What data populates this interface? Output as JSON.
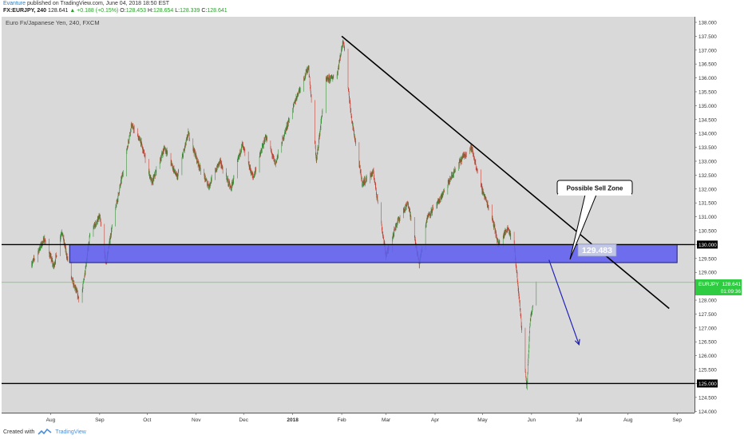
{
  "header": {
    "author": "Evanture",
    "published_text": " published on TradingView.com, June 04, 2018 18:50 EST",
    "symbol": "FX:EURJPY, 240",
    "last": "128.641",
    "change": "▲ +0.188 (+0.15%)",
    "o_label": "O:",
    "o_value": "128.453",
    "h_label": "H:",
    "h_value": "128.654",
    "l_label": "L:",
    "l_value": "128.339",
    "c_label": "C:",
    "c_value": "128.641"
  },
  "footer": {
    "created_with": "Created with",
    "brand": "TradingView"
  },
  "colors": {
    "plot_bg": "#d9d9d9",
    "up_candle": "#2e8b2e",
    "down_candle": "#c0392b",
    "zone_fill": "#5d5df0",
    "zone_border": "#1c1c6e",
    "trendline": "#000000",
    "arrow": "#2222bb",
    "current_price_line": "#5fd35f"
  },
  "chart_data": {
    "type": "candlestick",
    "title": "Euro Fx/Japanese Yen, 240, FXCM",
    "symbol_tag": "EURJPY",
    "current_price": "128.641",
    "countdown": "01:09:36",
    "x_ticks": [
      "Aug",
      "Sep",
      "Oct",
      "Nov",
      "Dec",
      "2018",
      "Feb",
      "Mar",
      "Apr",
      "May",
      "Jun",
      "Jul",
      "Aug",
      "Sep"
    ],
    "y_ticks": [
      "138.000",
      "137.500",
      "137.000",
      "136.500",
      "136.000",
      "135.500",
      "135.000",
      "134.500",
      "134.000",
      "133.500",
      "133.000",
      "132.500",
      "132.000",
      "131.500",
      "131.000",
      "130.500",
      "130.000",
      "129.500",
      "129.000",
      "128.500",
      "128.000",
      "127.500",
      "127.000",
      "126.500",
      "126.000",
      "125.500",
      "125.000",
      "124.500",
      "124.000"
    ],
    "ylim": [
      123.95,
      138.2
    ],
    "price_path": [
      [
        "2017-07-20",
        129.3
      ],
      [
        "2017-07-28",
        130.2
      ],
      [
        "2017-08-03",
        129.2
      ],
      [
        "2017-08-08",
        130.5
      ],
      [
        "2017-08-14",
        128.8
      ],
      [
        "2017-08-20",
        127.9
      ],
      [
        "2017-08-26",
        130.4
      ],
      [
        "2017-09-01",
        131.0
      ],
      [
        "2017-09-05",
        129.3
      ],
      [
        "2017-09-09",
        130.7
      ],
      [
        "2017-09-16",
        132.7
      ],
      [
        "2017-09-21",
        134.3
      ],
      [
        "2017-09-27",
        133.7
      ],
      [
        "2017-10-04",
        132.2
      ],
      [
        "2017-10-12",
        133.5
      ],
      [
        "2017-10-20",
        132.4
      ],
      [
        "2017-10-27",
        134.0
      ],
      [
        "2017-11-03",
        132.8
      ],
      [
        "2017-11-09",
        132.1
      ],
      [
        "2017-11-16",
        133.0
      ],
      [
        "2017-11-23",
        132.0
      ],
      [
        "2017-11-30",
        133.6
      ],
      [
        "2017-12-07",
        132.4
      ],
      [
        "2017-12-15",
        133.9
      ],
      [
        "2017-12-21",
        132.9
      ],
      [
        "2017-12-28",
        134.2
      ],
      [
        "2018-01-04",
        135.4
      ],
      [
        "2018-01-11",
        136.4
      ],
      [
        "2018-01-16",
        133.0
      ],
      [
        "2018-01-22",
        135.9
      ],
      [
        "2018-01-29",
        136.1
      ],
      [
        "2018-02-02",
        137.4
      ],
      [
        "2018-02-07",
        134.6
      ],
      [
        "2018-02-14",
        132.2
      ],
      [
        "2018-02-21",
        132.6
      ],
      [
        "2018-03-01",
        129.6
      ],
      [
        "2018-03-08",
        130.8
      ],
      [
        "2018-03-15",
        131.5
      ],
      [
        "2018-03-22",
        129.3
      ],
      [
        "2018-03-27",
        131.0
      ],
      [
        "2018-04-03",
        131.5
      ],
      [
        "2018-04-12",
        132.5
      ],
      [
        "2018-04-19",
        133.2
      ],
      [
        "2018-04-24",
        133.5
      ],
      [
        "2018-04-30",
        132.1
      ],
      [
        "2018-05-07",
        131.0
      ],
      [
        "2018-05-11",
        130.0
      ],
      [
        "2018-05-17",
        130.6
      ],
      [
        "2018-05-21",
        130.0
      ],
      [
        "2018-05-25",
        127.5
      ],
      [
        "2018-05-29",
        124.8
      ],
      [
        "2018-05-31",
        127.2
      ],
      [
        "2018-06-04",
        128.641
      ]
    ],
    "sell_zone": {
      "top": 130.0,
      "bottom": 129.35,
      "start": "2017-08-13",
      "end": "2018-09-01"
    },
    "horizontal_lines": [
      130.0,
      125.0
    ],
    "trendline": {
      "start": [
        "2018-02-01",
        137.5
      ],
      "end": [
        "2018-08-27",
        127.7
      ]
    },
    "projection_arrow": {
      "start": [
        "2018-06-12",
        129.45
      ],
      "end": [
        "2018-07-01",
        126.4
      ]
    },
    "annotation": {
      "text": "Possible Sell Zone",
      "price_label": "129.483"
    }
  }
}
